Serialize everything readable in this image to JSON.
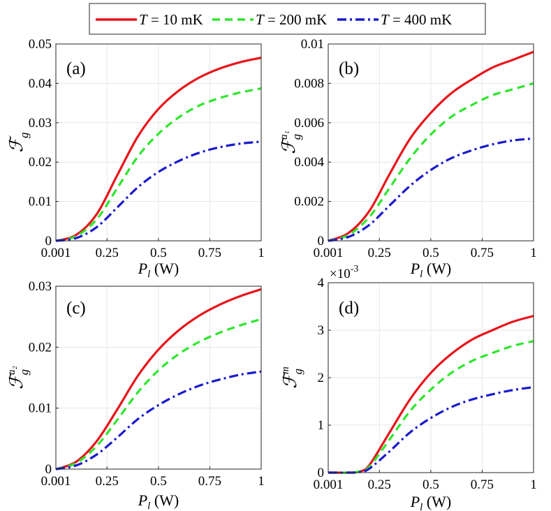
{
  "legend": {
    "entries": [
      {
        "var": "T",
        "text": " = 10 mK",
        "color": "#e8141a",
        "dash": "solid"
      },
      {
        "var": "T",
        "text": " = 200 mK",
        "color": "#2ee62e",
        "dash": "dash"
      },
      {
        "var": "T",
        "text": " = 400 mK",
        "color": "#1a1acc",
        "dash": "dashdot"
      }
    ]
  },
  "xlabel": {
    "var": "P",
    "sub": "l",
    "unit": " (W)"
  },
  "colors": {
    "red": "#e8141a",
    "green": "#2ee62e",
    "blue": "#1a1acc"
  },
  "chart_data": [
    {
      "type": "line",
      "id": "a",
      "panel_label": "(a)",
      "ylabel": {
        "base": "ℱ",
        "sub": "g",
        "sup": ""
      },
      "xlim": [
        0.001,
        1
      ],
      "ylim": [
        0,
        0.05
      ],
      "xticks": [
        "0.001",
        "0.25",
        "0.5",
        "0.75",
        "1"
      ],
      "yticks": [
        "0",
        "0.01",
        "0.02",
        "0.03",
        "0.04",
        "0.05"
      ],
      "ytick_values": [
        0,
        0.01,
        0.02,
        0.03,
        0.04,
        0.05
      ],
      "x": [
        0.001,
        0.1,
        0.2,
        0.3,
        0.4,
        0.5,
        0.6,
        0.7,
        0.8,
        0.9,
        1.0
      ],
      "series": [
        {
          "name": "T = 10 mK",
          "values": [
            0,
            0.0015,
            0.0068,
            0.0167,
            0.0265,
            0.0335,
            0.0382,
            0.0415,
            0.0438,
            0.0454,
            0.0465
          ]
        },
        {
          "name": "T = 200 mK",
          "values": [
            0,
            0.0012,
            0.0055,
            0.0134,
            0.0214,
            0.0272,
            0.0314,
            0.0344,
            0.0363,
            0.0377,
            0.0387
          ]
        },
        {
          "name": "T = 400 mK",
          "values": [
            0,
            0.0007,
            0.0035,
            0.0085,
            0.0136,
            0.0175,
            0.0203,
            0.0224,
            0.0238,
            0.0247,
            0.0252
          ]
        }
      ]
    },
    {
      "type": "line",
      "id": "b",
      "panel_label": "(b)",
      "ylabel": {
        "base": "ℱ",
        "sub": "g",
        "sup": "a₁"
      },
      "xlim": [
        0.001,
        1
      ],
      "ylim": [
        0,
        0.01
      ],
      "xticks": [
        "0.001",
        "0.25",
        "0.5",
        "0.75",
        "1"
      ],
      "yticks": [
        "0",
        "0.002",
        "0.004",
        "0.006",
        "0.008",
        "0.01"
      ],
      "ytick_values": [
        0,
        0.002,
        0.004,
        0.006,
        0.008,
        0.01
      ],
      "x": [
        0.001,
        0.1,
        0.2,
        0.3,
        0.4,
        0.5,
        0.6,
        0.7,
        0.8,
        0.9,
        1.0
      ],
      "series": [
        {
          "name": "T = 10 mK",
          "values": [
            0,
            0.0004,
            0.0015,
            0.0034,
            0.0052,
            0.0065,
            0.0075,
            0.0082,
            0.0088,
            0.0092,
            0.0096
          ]
        },
        {
          "name": "T = 200 mK",
          "values": [
            0,
            0.0003,
            0.0012,
            0.0027,
            0.0042,
            0.0054,
            0.0063,
            0.0069,
            0.0074,
            0.0077,
            0.008
          ]
        },
        {
          "name": "T = 400 mK",
          "values": [
            0,
            0.0002,
            0.0008,
            0.0018,
            0.0028,
            0.0036,
            0.0042,
            0.0046,
            0.0049,
            0.0051,
            0.0052
          ]
        }
      ]
    },
    {
      "type": "line",
      "id": "c",
      "panel_label": "(c)",
      "ylabel": {
        "base": "ℱ",
        "sub": "g",
        "sup": "a₂"
      },
      "xlim": [
        0.001,
        1
      ],
      "ylim": [
        0,
        0.03
      ],
      "xticks": [
        "0.001",
        "0.25",
        "0.5",
        "0.75",
        "1"
      ],
      "yticks": [
        "0",
        "0.01",
        "0.02",
        "0.03"
      ],
      "ytick_values": [
        0,
        0.01,
        0.02,
        0.03
      ],
      "x": [
        0.001,
        0.1,
        0.2,
        0.3,
        0.4,
        0.5,
        0.6,
        0.7,
        0.8,
        0.9,
        1.0
      ],
      "series": [
        {
          "name": "T = 10 mK",
          "values": [
            0,
            0.0012,
            0.0046,
            0.0098,
            0.0153,
            0.0196,
            0.0228,
            0.0252,
            0.027,
            0.0284,
            0.0295
          ]
        },
        {
          "name": "T = 200 mK",
          "values": [
            0,
            0.001,
            0.0038,
            0.0081,
            0.0126,
            0.0162,
            0.0189,
            0.0209,
            0.0224,
            0.0236,
            0.0246
          ]
        },
        {
          "name": "T = 400 mK",
          "values": [
            0,
            0.0006,
            0.0024,
            0.0052,
            0.0082,
            0.0105,
            0.0123,
            0.0137,
            0.0147,
            0.0155,
            0.016
          ]
        }
      ]
    },
    {
      "type": "line",
      "id": "d",
      "panel_label": "(d)",
      "ylabel": {
        "base": "ℱ",
        "sub": "g",
        "sup": "m"
      },
      "xlim": [
        0.001,
        1
      ],
      "ylim": [
        0,
        4
      ],
      "exponent_label": "×10",
      "exponent_power": "-3",
      "xticks": [
        "0.001",
        "0.25",
        "0.5",
        "0.75",
        "1"
      ],
      "yticks": [
        "0",
        "1",
        "2",
        "3",
        "4"
      ],
      "ytick_values": [
        0,
        1,
        2,
        3,
        4
      ],
      "x": [
        0.001,
        0.1,
        0.15,
        0.2,
        0.3,
        0.4,
        0.5,
        0.6,
        0.7,
        0.8,
        0.9,
        1.0
      ],
      "series": [
        {
          "name": "T = 10 mK",
          "values": [
            0,
            0,
            0.02,
            0.15,
            0.85,
            1.55,
            2.1,
            2.5,
            2.8,
            3.0,
            3.18,
            3.3
          ]
        },
        {
          "name": "T = 200 mK",
          "values": [
            0,
            0,
            0.02,
            0.12,
            0.7,
            1.3,
            1.75,
            2.1,
            2.35,
            2.52,
            2.67,
            2.77
          ]
        },
        {
          "name": "T = 400 mK",
          "values": [
            0,
            0,
            0.01,
            0.08,
            0.45,
            0.85,
            1.15,
            1.38,
            1.54,
            1.65,
            1.74,
            1.8
          ]
        }
      ]
    }
  ]
}
